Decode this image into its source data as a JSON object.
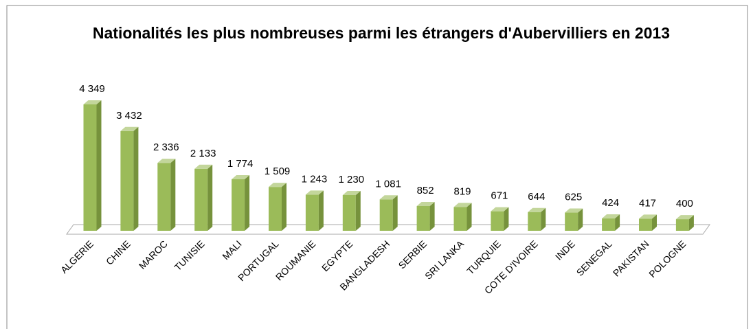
{
  "chart_data": {
    "type": "bar3d",
    "title": "Nationalités les plus nombreuses parmi les étrangers d'Aubervilliers en 2013",
    "categories": [
      "ALGERIE",
      "CHINE",
      "MAROC",
      "TUNISIE",
      "MALI",
      "PORTUGAL",
      "ROUMANIE",
      "EGYPTE",
      "BANGLADESH",
      "SERBIE",
      "SRI LANKA",
      "TURQUIE",
      "COTE D'IVOIRE",
      "INDE",
      "SENEGAL",
      "PAKISTAN",
      "POLOGNE"
    ],
    "values": [
      4349,
      3432,
      2336,
      2133,
      1774,
      1509,
      1243,
      1230,
      1081,
      852,
      819,
      671,
      644,
      625,
      424,
      417,
      400
    ],
    "value_labels": [
      "4 349",
      "3 432",
      "2 336",
      "2 133",
      "1 774",
      "1 509",
      "1 243",
      "1 230",
      "1 081",
      "852",
      "819",
      "671",
      "644",
      "625",
      "424",
      "417",
      "400"
    ],
    "color": "#9bbb59"
  }
}
